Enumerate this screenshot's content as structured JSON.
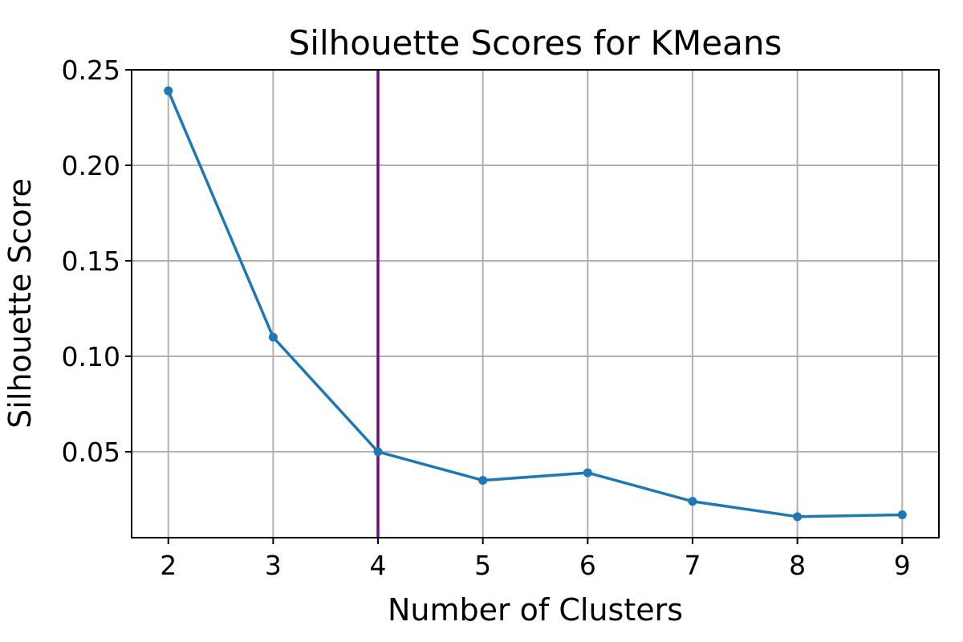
{
  "chart_data": {
    "type": "line",
    "title": "Silhouette Scores for KMeans",
    "xlabel": "Number of Clusters",
    "ylabel": "Silhouette Score",
    "x": [
      2,
      3,
      4,
      5,
      6,
      7,
      8,
      9
    ],
    "x_ticks": [
      "2",
      "3",
      "4",
      "5",
      "6",
      "7",
      "8",
      "9"
    ],
    "y_ticks": [
      "0.05",
      "0.10",
      "0.15",
      "0.20",
      "0.25"
    ],
    "series": [
      {
        "values": [
          0.239,
          0.11,
          0.05,
          0.035,
          0.039,
          0.024,
          0.016,
          0.017
        ],
        "color": "#1f77b4",
        "marker": "circle"
      }
    ],
    "vline": {
      "x": 4,
      "color": "#6a0f7f"
    },
    "xlim": [
      1.65,
      9.35
    ],
    "ylim": [
      0.005,
      0.25
    ],
    "grid": true,
    "legend": false
  }
}
